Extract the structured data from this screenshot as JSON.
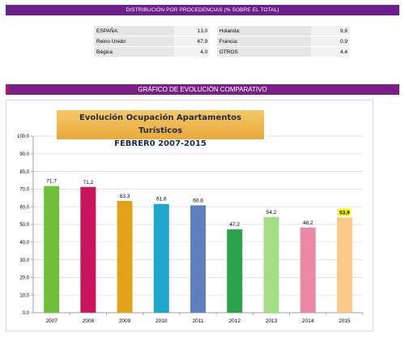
{
  "top_banner": "DISTRIBUCIÓN POR PROCEDENCIAS (% SOBRE EL TOTAL)",
  "stats": [
    {
      "label": "ESPAÑA:",
      "value": "13,0",
      "label2": "Holanda:",
      "value2": "9,6"
    },
    {
      "label": "Reino Unido:",
      "value": "67,9",
      "label2": "Francia:",
      "value2": "0,9"
    },
    {
      "label": "Bégica",
      "value": "4,0",
      "label2": "OTROS",
      "value2": "4,4"
    }
  ],
  "chart_banner": "GRÁFICO DE EVOLUCIÓN COMPARATIVO",
  "chart_data": {
    "type": "bar",
    "title_line1": "Evolución Ocupación Apartamentos Turísticos",
    "title_line2": "FEBRER0 2007-2015",
    "categories": [
      "2007",
      "2008",
      "2009",
      "2010",
      "2011",
      "2012",
      "2013",
      "2014",
      "2015"
    ],
    "values": [
      71.7,
      71.2,
      63.3,
      61.6,
      60.8,
      47.2,
      54.2,
      48.2,
      53.9
    ],
    "value_labels": [
      "71,7",
      "71,2",
      "63,3",
      "61,6",
      "60,8",
      "47,2",
      "54,2",
      "48,2",
      "53,9"
    ],
    "colors": [
      "#6fbf3a",
      "#c8155d",
      "#e3a21b",
      "#1ea5c9",
      "#5f7fbf",
      "#2ca04a",
      "#a3dd86",
      "#ee86a6",
      "#f9c88a"
    ],
    "highlight_label_index": 8,
    "highlight_color": "#ffff00",
    "ylim": [
      0,
      100
    ],
    "yticks": [
      "0,0",
      "10,0",
      "20,0",
      "30,0",
      "40,0",
      "50,0",
      "60,0",
      "70,0",
      "80,0",
      "90,0",
      "100,0"
    ],
    "grid": true
  }
}
